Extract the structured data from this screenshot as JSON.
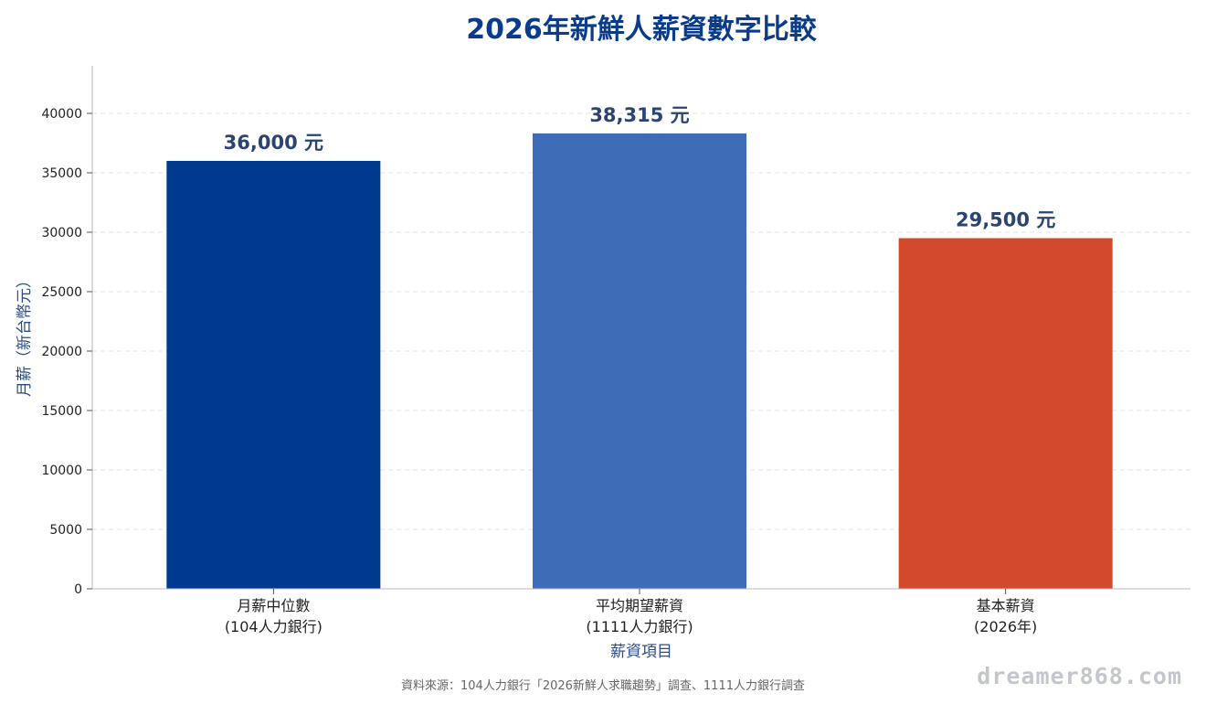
{
  "chart_data": {
    "type": "bar",
    "title": "2026年新鮮人薪資數字比較",
    "xlabel": "薪資項目",
    "ylabel": "月薪（新台幣元）",
    "ylim": [
      0,
      44000
    ],
    "yticks": [
      0,
      5000,
      10000,
      15000,
      20000,
      25000,
      30000,
      35000,
      40000
    ],
    "grid": true,
    "categories": [
      [
        "月薪中位數",
        "(104人力銀行)"
      ],
      [
        "平均期望薪資",
        "(1111人力銀行)"
      ],
      [
        "基本薪資",
        "(2026年)"
      ]
    ],
    "values": [
      36000,
      38315,
      29500
    ],
    "data_labels": [
      "36,000 元",
      "38,315 元",
      "29,500 元"
    ],
    "colors": [
      "#003a8f",
      "#3f6cb6",
      "#d2492b"
    ]
  },
  "footer": {
    "source": "資料來源：104人力銀行「2026新鮮人求職趨勢」調查、1111人力銀行調查",
    "watermark": "dreamer868.com"
  }
}
